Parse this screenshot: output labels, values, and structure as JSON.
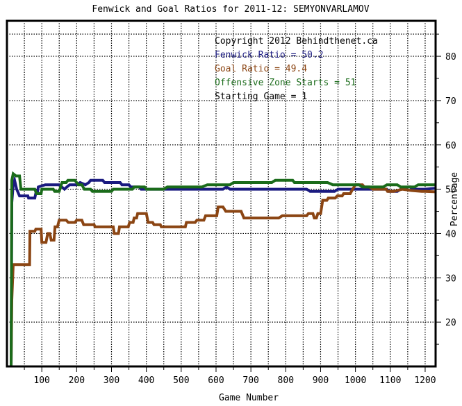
{
  "chart_data": {
    "type": "line",
    "title": "Fenwick and Goal Ratios for 2011-12: SEMYONVARLAMOV",
    "xlabel": "Game Number",
    "ylabel": "Percentage",
    "xlim": [
      0,
      1230
    ],
    "ylim": [
      10,
      88
    ],
    "x_ticks": [
      100,
      200,
      300,
      400,
      500,
      600,
      700,
      800,
      900,
      1000,
      1100,
      1200
    ],
    "y_ticks": [
      20,
      30,
      40,
      50,
      60,
      70,
      80
    ],
    "y_axis_side": "right",
    "grid": true,
    "grid_style": "dotted",
    "legend_position": "top-right",
    "annotations": [
      {
        "text": "Copyright 2012 Behindthenet.ca",
        "color": "#000000"
      },
      {
        "text": "Fenwick Ratio = 50.2",
        "color": "#1a1a80"
      },
      {
        "text": "Goal Ratio = 49.4",
        "color": "#8b4513"
      },
      {
        "text": "Offensive Zone Starts = 51",
        "color": "#1a6b1a"
      },
      {
        "text": "Starting Game = 1",
        "color": "#000000"
      }
    ],
    "series": [
      {
        "color": "#1a1a80",
        "points": [
          [
            12,
            10
          ],
          [
            14,
            47
          ],
          [
            18,
            51
          ],
          [
            22,
            52
          ],
          [
            28,
            50
          ],
          [
            36,
            48.5
          ],
          [
            60,
            48.5
          ],
          [
            62,
            48
          ],
          [
            80,
            48
          ],
          [
            84,
            49.5
          ],
          [
            88,
            49.5
          ],
          [
            90,
            50.5
          ],
          [
            110,
            51
          ],
          [
            150,
            51
          ],
          [
            165,
            50
          ],
          [
            172,
            50.5
          ],
          [
            180,
            51
          ],
          [
            200,
            51
          ],
          [
            210,
            51.5
          ],
          [
            225,
            51
          ],
          [
            235,
            51.5
          ],
          [
            240,
            52
          ],
          [
            275,
            52
          ],
          [
            280,
            51.5
          ],
          [
            325,
            51.5
          ],
          [
            330,
            51
          ],
          [
            350,
            51
          ],
          [
            355,
            50.5
          ],
          [
            380,
            50.5
          ],
          [
            385,
            50
          ],
          [
            620,
            50
          ],
          [
            630,
            50.5
          ],
          [
            640,
            50
          ],
          [
            860,
            50
          ],
          [
            870,
            49.5
          ],
          [
            940,
            49.5
          ],
          [
            950,
            50
          ],
          [
            1090,
            50
          ],
          [
            1095,
            49.5
          ],
          [
            1120,
            49.5
          ],
          [
            1130,
            50
          ],
          [
            1150,
            50.5
          ],
          [
            1158,
            50.5
          ],
          [
            1162,
            50
          ],
          [
            1200,
            50
          ],
          [
            1230,
            50.2
          ]
        ]
      },
      {
        "color": "#8b4513",
        "points": [
          [
            12,
            10
          ],
          [
            14,
            25
          ],
          [
            18,
            33
          ],
          [
            65,
            33
          ],
          [
            66,
            40.5
          ],
          [
            80,
            40.5
          ],
          [
            83,
            41
          ],
          [
            98,
            41
          ],
          [
            100,
            38
          ],
          [
            112,
            38
          ],
          [
            117,
            40
          ],
          [
            123,
            40
          ],
          [
            127,
            38.5
          ],
          [
            135,
            38.5
          ],
          [
            138,
            41.5
          ],
          [
            145,
            41.5
          ],
          [
            150,
            43
          ],
          [
            170,
            43
          ],
          [
            176,
            42.5
          ],
          [
            195,
            42.5
          ],
          [
            200,
            43
          ],
          [
            215,
            43
          ],
          [
            220,
            42
          ],
          [
            250,
            42
          ],
          [
            253,
            41.5
          ],
          [
            305,
            41.5
          ],
          [
            308,
            40
          ],
          [
            320,
            40
          ],
          [
            323,
            41.5
          ],
          [
            348,
            41.5
          ],
          [
            352,
            42.5
          ],
          [
            362,
            42.5
          ],
          [
            365,
            43.5
          ],
          [
            372,
            43.5
          ],
          [
            375,
            44.5
          ],
          [
            400,
            44.5
          ],
          [
            405,
            42.5
          ],
          [
            418,
            42.5
          ],
          [
            422,
            42
          ],
          [
            440,
            42
          ],
          [
            443,
            41.5
          ],
          [
            512,
            41.5
          ],
          [
            515,
            42.5
          ],
          [
            540,
            42.5
          ],
          [
            545,
            43
          ],
          [
            565,
            43
          ],
          [
            570,
            44
          ],
          [
            602,
            44
          ],
          [
            606,
            46
          ],
          [
            620,
            46
          ],
          [
            628,
            45
          ],
          [
            672,
            45
          ],
          [
            680,
            43.5
          ],
          [
            720,
            43.5
          ],
          [
            722,
            43.5
          ],
          [
            780,
            43.5
          ],
          [
            790,
            44
          ],
          [
            845,
            44
          ],
          [
            860,
            44
          ],
          [
            865,
            44.5
          ],
          [
            878,
            44.5
          ],
          [
            882,
            43.5
          ],
          [
            888,
            43.5
          ],
          [
            892,
            44.5
          ],
          [
            900,
            44.5
          ],
          [
            906,
            47.5
          ],
          [
            918,
            47.5
          ],
          [
            922,
            48
          ],
          [
            942,
            48
          ],
          [
            948,
            48.5
          ],
          [
            962,
            48.5
          ],
          [
            966,
            49
          ],
          [
            985,
            49
          ],
          [
            992,
            50
          ],
          [
            1000,
            51
          ],
          [
            1020,
            51
          ],
          [
            1025,
            50.5
          ],
          [
            1040,
            50.5
          ],
          [
            1050,
            50
          ],
          [
            1088,
            50
          ],
          [
            1092,
            49.5
          ],
          [
            1110,
            49.5
          ],
          [
            1120,
            49.7
          ],
          [
            1135,
            50
          ],
          [
            1160,
            49.7
          ],
          [
            1190,
            49.5
          ],
          [
            1200,
            49.5
          ],
          [
            1230,
            49.4
          ]
        ]
      },
      {
        "color": "#1a6b1a",
        "points": [
          [
            12,
            10
          ],
          [
            14,
            52
          ],
          [
            18,
            53.5
          ],
          [
            26,
            53
          ],
          [
            36,
            53
          ],
          [
            40,
            50
          ],
          [
            80,
            50
          ],
          [
            85,
            49
          ],
          [
            98,
            49
          ],
          [
            100,
            50
          ],
          [
            133,
            50
          ],
          [
            137,
            49.5
          ],
          [
            150,
            49.5
          ],
          [
            158,
            51.5
          ],
          [
            170,
            51.5
          ],
          [
            175,
            52
          ],
          [
            195,
            52
          ],
          [
            200,
            51.5
          ],
          [
            205,
            51
          ],
          [
            215,
            51
          ],
          [
            222,
            50
          ],
          [
            240,
            50
          ],
          [
            245,
            49.5
          ],
          [
            300,
            49.5
          ],
          [
            305,
            50
          ],
          [
            360,
            50
          ],
          [
            365,
            50.5
          ],
          [
            395,
            50.5
          ],
          [
            400,
            50
          ],
          [
            450,
            50
          ],
          [
            460,
            50.5
          ],
          [
            560,
            50.5
          ],
          [
            575,
            51
          ],
          [
            640,
            51
          ],
          [
            650,
            51.5
          ],
          [
            760,
            51.5
          ],
          [
            770,
            52
          ],
          [
            820,
            52
          ],
          [
            825,
            51.5
          ],
          [
            920,
            51.5
          ],
          [
            935,
            51
          ],
          [
            1010,
            51
          ],
          [
            1020,
            50.5
          ],
          [
            1080,
            50.5
          ],
          [
            1090,
            51
          ],
          [
            1120,
            51
          ],
          [
            1130,
            50.5
          ],
          [
            1170,
            50.5
          ],
          [
            1180,
            51
          ],
          [
            1230,
            51
          ]
        ]
      }
    ]
  }
}
